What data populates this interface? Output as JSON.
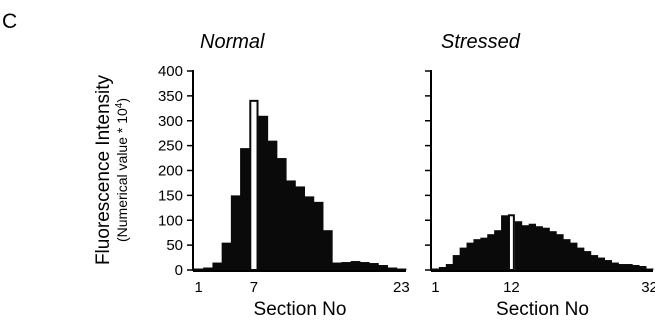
{
  "panel_label": "C",
  "ylabel_main": "Fluorescence Intensity",
  "ylabel_sub_prefix": "(Numerical value * 10",
  "ylabel_sub_exponent": "4",
  "ylabel_sub_suffix": ")",
  "chart_data": [
    {
      "type": "bar",
      "title": "Normal",
      "xlabel": "Section No",
      "ylabel": "Fluorescence Intensity (Numerical value * 10^4)",
      "ylim": [
        0,
        400
      ],
      "yticks": [
        0,
        50,
        100,
        150,
        200,
        250,
        300,
        350,
        400
      ],
      "show_y_tick_labels": true,
      "x_tick_labels": [
        "1",
        "7",
        "23"
      ],
      "x_tick_sections": [
        1,
        7,
        23
      ],
      "highlight_section": 7,
      "grid": false,
      "sections": [
        1,
        2,
        3,
        4,
        5,
        6,
        7,
        8,
        9,
        10,
        11,
        12,
        13,
        14,
        15,
        16,
        17,
        18,
        19,
        20,
        21,
        22,
        23
      ],
      "values": [
        3,
        5,
        15,
        55,
        150,
        245,
        340,
        310,
        260,
        225,
        180,
        168,
        148,
        137,
        80,
        15,
        16,
        18,
        16,
        14,
        10,
        5,
        3
      ]
    },
    {
      "type": "bar",
      "title": "Stressed",
      "xlabel": "Section No",
      "ylabel": "",
      "ylim": [
        0,
        400
      ],
      "yticks": [
        0,
        50,
        100,
        150,
        200,
        250,
        300,
        350,
        400
      ],
      "show_y_tick_labels": false,
      "x_tick_labels": [
        "1",
        "12",
        "32"
      ],
      "x_tick_sections": [
        1,
        12,
        32
      ],
      "highlight_section": 12,
      "grid": false,
      "sections": [
        1,
        2,
        3,
        4,
        5,
        6,
        7,
        8,
        9,
        10,
        11,
        12,
        13,
        14,
        15,
        16,
        17,
        18,
        19,
        20,
        21,
        22,
        23,
        24,
        25,
        26,
        27,
        28,
        29,
        30,
        31,
        32
      ],
      "values": [
        3,
        6,
        12,
        30,
        45,
        55,
        62,
        65,
        72,
        80,
        110,
        110,
        98,
        90,
        93,
        88,
        85,
        78,
        72,
        62,
        55,
        45,
        38,
        30,
        25,
        20,
        15,
        12,
        12,
        10,
        8,
        3
      ]
    }
  ]
}
